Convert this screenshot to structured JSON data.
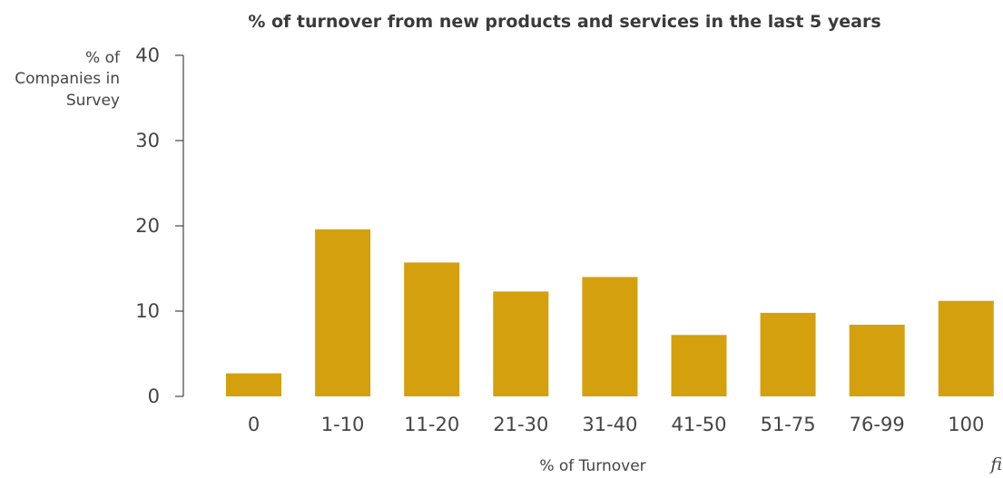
{
  "chart_data": {
    "type": "bar",
    "title": "% of turnover from new products and services in the last 5 years",
    "ylabel_lines": [
      "% of",
      "Companies in",
      "Survey"
    ],
    "xlabel": "% of Turnover",
    "categories": [
      "0",
      "1-10",
      "11-20",
      "21-30",
      "31-40",
      "41-50",
      "51-75",
      "76-99",
      "100"
    ],
    "values": [
      2.7,
      19.6,
      15.7,
      12.3,
      14.0,
      7.2,
      9.8,
      8.4,
      11.2
    ],
    "ylim": [
      0,
      40
    ],
    "yticks": [
      "0",
      "10",
      "20",
      "30",
      "40"
    ],
    "grid": false,
    "bar_color": "#D4A00E",
    "corner_mark": "fi"
  }
}
